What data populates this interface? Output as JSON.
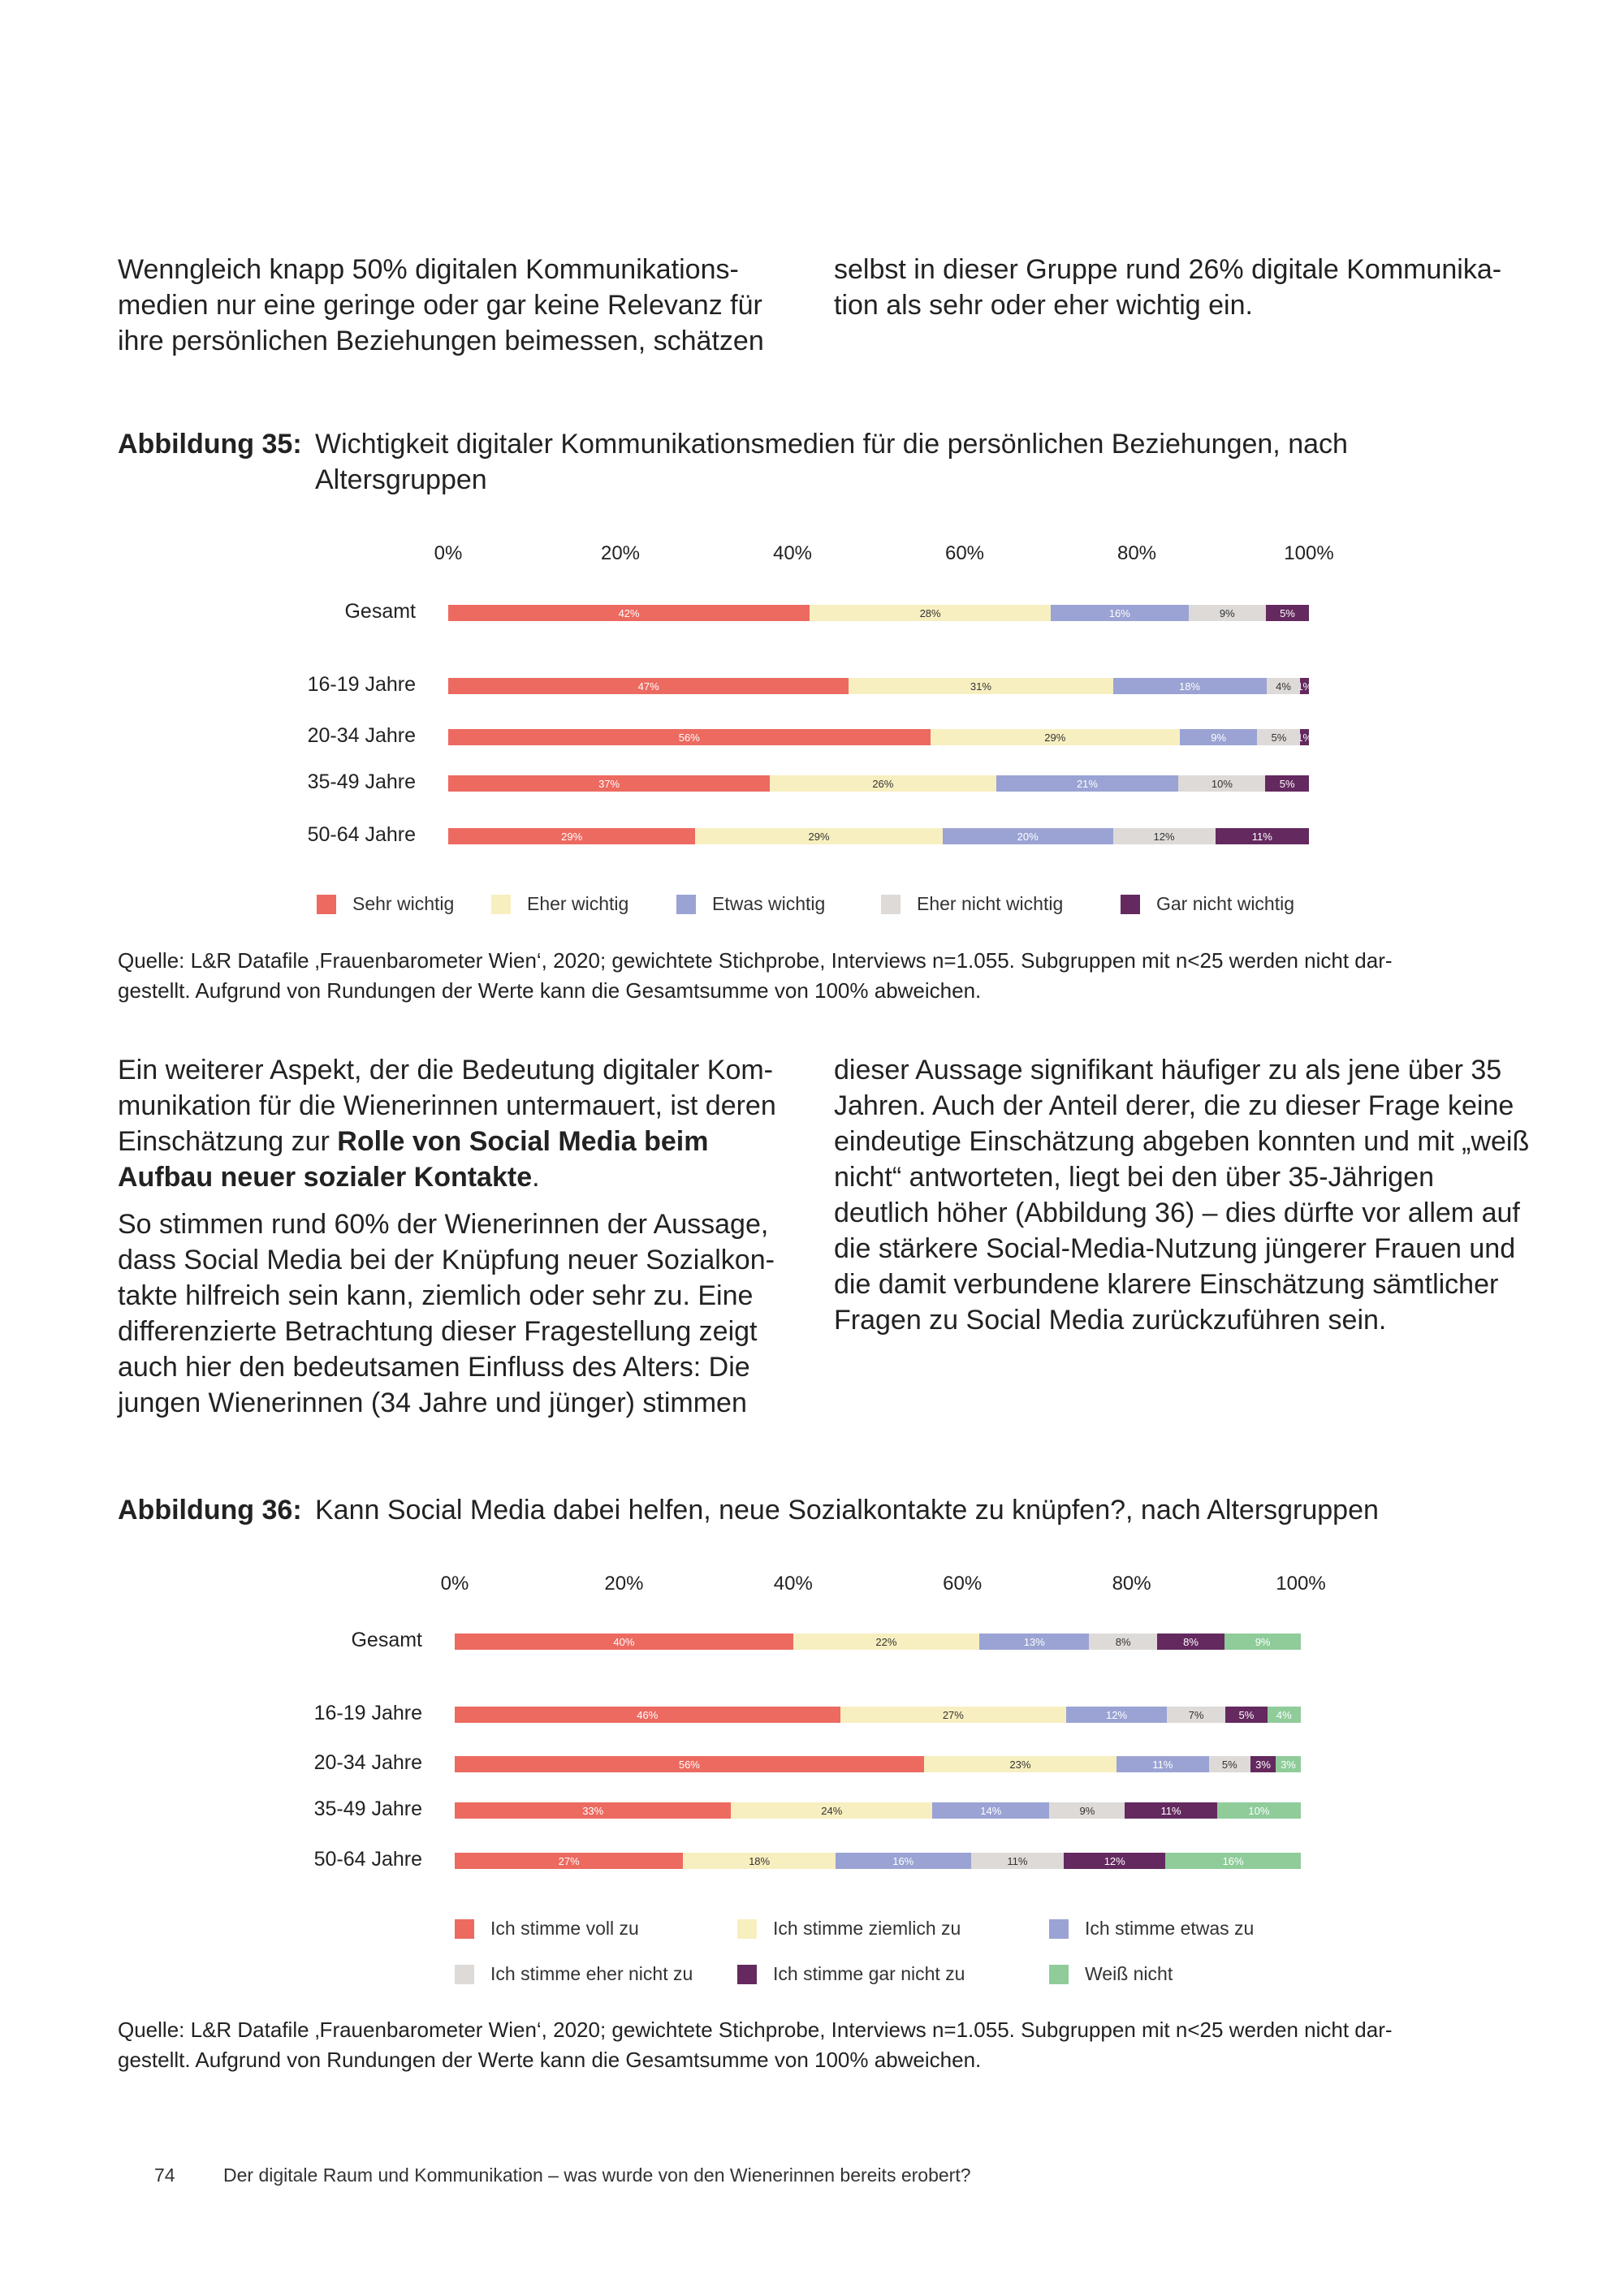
{
  "intro": {
    "col1": "Wenngleich knapp 50% digitalen Kommunikations-medien nur eine geringe oder gar keine Relevanz für ihre persönlichen Beziehungen beimessen, schätzen",
    "col2": "selbst in dieser Gruppe rund 26% digitale Kommunika-tion als sehr oder eher wichtig ein."
  },
  "figure35": {
    "label": "Abbildung 35:",
    "title": "Wichtigkeit digitaler Kommunikationsmedien für die persönlichen Beziehungen, nach Altersgruppen",
    "source_line1": "Quelle: L&R Datafile ‚Frauenbarometer Wien‘, 2020; gewichtete Stichprobe, Interviews n=1.055. Subgruppen mit n<25 werden nicht dar-",
    "source_line2": "gestellt. Aufgrund von Rundungen der Werte kann die Gesamtsumme von 100% abweichen."
  },
  "body2": {
    "col1_p1_a": "Ein weiterer Aspekt, der die Bedeutung digitaler Kom-munikation für die Wienerinnen untermauert, ist deren Einschätzung zur ",
    "col1_p1_bold": "Rolle von Social Media beim Aufbau neuer sozialer Kontakte",
    "col1_p1_end": ".",
    "col1_p2": "So stimmen rund 60% der Wienerinnen der Aussage, dass Social Media bei der Knüpfung neuer Sozialkon-takte hilfreich sein kann, ziemlich oder sehr zu. Eine differenzierte Betrachtung dieser Fragestellung zeigt auch hier den bedeutsamen Einfluss des Alters: Die jungen Wienerinnen (34 Jahre und jünger) stimmen",
    "col2": "dieser Aussage signifikant häufiger zu als jene über 35 Jahren. Auch der Anteil derer, die zu dieser Frage keine eindeutige Einschätzung abgeben konnten und mit „weiß nicht“ antworteten, liegt bei den über 35-Jährigen deutlich höher (Abbildung 36) – dies dürfte vor allem auf die stärkere Social-Media-Nutzung jüngerer Frauen und die damit verbundene klarere Einschätzung sämtlicher Fragen zu Social Media zurückzuführen sein."
  },
  "figure36": {
    "label": "Abbildung 36:",
    "title": "Kann Social Media dabei helfen, neue Sozialkontakte zu knüpfen?, nach Altersgruppen",
    "source_line1": "Quelle: L&R Datafile ‚Frauenbarometer Wien‘, 2020; gewichtete Stichprobe, Interviews n=1.055. Subgruppen mit n<25 werden nicht dar-",
    "source_line2": "gestellt. Aufgrund von Rundungen der Werte kann die Gesamtsumme von 100% abweichen."
  },
  "footer": {
    "page_number": "74",
    "running_title": "Der digitale Raum und Kommunikation – was wurde von den Wienerinnen bereits erobert?"
  },
  "chart_data": [
    {
      "type": "bar",
      "orientation": "horizontal",
      "stacked": true,
      "title": "",
      "xlim": [
        0,
        100
      ],
      "x_ticks": [
        "0%",
        "20%",
        "40%",
        "60%",
        "80%",
        "100%"
      ],
      "categories": [
        "Gesamt",
        "16-19 Jahre",
        "20-34 Jahre",
        "35-49 Jahre",
        "50-64 Jahre"
      ],
      "legend_position": "bottom",
      "series": [
        {
          "name": "Sehr wichtig",
          "color": "#ec6a60",
          "label_color": "#ffffff",
          "values": [
            42,
            47,
            56,
            37,
            29
          ]
        },
        {
          "name": "Eher wichtig",
          "color": "#f8efc0",
          "label_color": "#333333",
          "values": [
            28,
            31,
            29,
            26,
            29
          ]
        },
        {
          "name": "Etwas wichtig",
          "color": "#9aa3d3",
          "label_color": "#ffffff",
          "values": [
            16,
            18,
            9,
            21,
            20
          ]
        },
        {
          "name": "Eher nicht wichtig",
          "color": "#dedad7",
          "label_color": "#333333",
          "values": [
            9,
            4,
            5,
            10,
            12
          ]
        },
        {
          "name": "Gar nicht wichtig",
          "color": "#64295f",
          "label_color": "#ffffff",
          "values": [
            5,
            1,
            1,
            5,
            11
          ]
        }
      ]
    },
    {
      "type": "bar",
      "orientation": "horizontal",
      "stacked": true,
      "title": "",
      "xlim": [
        0,
        100
      ],
      "x_ticks": [
        "0%",
        "20%",
        "40%",
        "60%",
        "80%",
        "100%"
      ],
      "categories": [
        "Gesamt",
        "16-19 Jahre",
        "20-34 Jahre",
        "35-49 Jahre",
        "50-64 Jahre"
      ],
      "legend_position": "bottom",
      "series": [
        {
          "name": "Ich stimme voll zu",
          "color": "#ec6a60",
          "label_color": "#ffffff",
          "values": [
            40,
            46,
            56,
            33,
            27
          ]
        },
        {
          "name": "Ich stimme ziemlich zu",
          "color": "#f8efc0",
          "label_color": "#333333",
          "values": [
            22,
            27,
            23,
            24,
            18
          ]
        },
        {
          "name": "Ich stimme etwas zu",
          "color": "#9aa3d3",
          "label_color": "#ffffff",
          "values": [
            13,
            12,
            11,
            14,
            16
          ]
        },
        {
          "name": "Ich stimme eher nicht zu",
          "color": "#dedad7",
          "label_color": "#333333",
          "values": [
            8,
            7,
            5,
            9,
            11
          ]
        },
        {
          "name": "Ich stimme gar nicht zu",
          "color": "#64295f",
          "label_color": "#ffffff",
          "values": [
            8,
            5,
            3,
            11,
            12
          ]
        },
        {
          "name": "Weiß nicht",
          "color": "#8fcc9a",
          "label_color": "#ffffff",
          "values": [
            9,
            4,
            3,
            10,
            16
          ]
        }
      ]
    }
  ]
}
